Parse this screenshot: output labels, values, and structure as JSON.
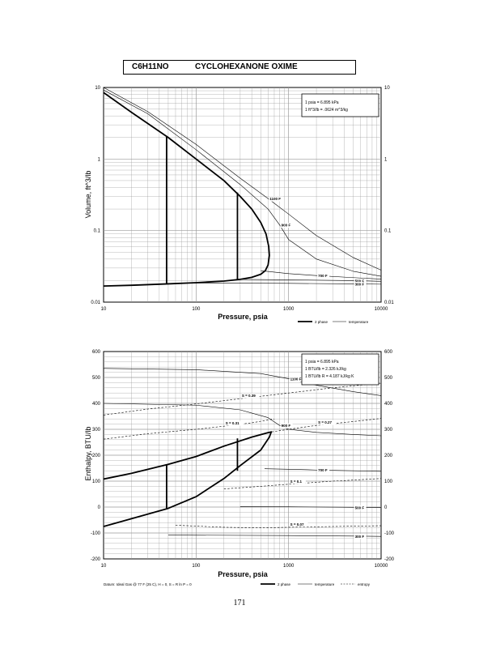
{
  "page": {
    "formula": "C6H11NO",
    "compound": "CYCLOHEXANONE OXIME",
    "page_number": "171",
    "footer_datum": "Datum: Ideal Gas @ 77 F (25 C), H = 0, S = R ln P = 0"
  },
  "legend": {
    "two_phase": "2 phase",
    "temperature": "temperature",
    "entropy": "entropy"
  },
  "colors": {
    "ink": "#000000",
    "grid": "#9a9a9a",
    "paper": "#ffffff"
  },
  "chart_data": [
    {
      "type": "line",
      "ylabel": "Volume, ft^3/lb",
      "xlabel": "Pressure,  psia",
      "xscale": "log",
      "yscale": "log",
      "xlim": [
        10,
        10000
      ],
      "ylim": [
        0.01,
        10
      ],
      "x_ticks": [
        "10",
        "100",
        "1000",
        "10000"
      ],
      "y_ticks": [
        "0.01",
        "0.1",
        "1",
        "10"
      ],
      "y_ticks_right": [
        "0.01",
        "0.1",
        "1",
        "10"
      ],
      "grid": true,
      "notes": [
        "1 psia = 6.895 kPa",
        "1 ft^3/lb = .0624 m^3/kg"
      ],
      "series": [
        {
          "kind": "2 phase",
          "points": [
            [
              10,
              0.0168
            ],
            [
              20,
              0.0172
            ],
            [
              50,
              0.018
            ],
            [
              100,
              0.0187
            ],
            [
              200,
              0.0197
            ],
            [
              300,
              0.0208
            ],
            [
              400,
              0.0222
            ],
            [
              500,
              0.0245
            ],
            [
              560,
              0.0275
            ],
            [
              600,
              0.033
            ],
            [
              620,
              0.045
            ],
            [
              610,
              0.06
            ],
            [
              570,
              0.09
            ],
            [
              500,
              0.13
            ],
            [
              400,
              0.2
            ],
            [
              300,
              0.3
            ],
            [
              200,
              0.5
            ],
            [
              100,
              1.0
            ],
            [
              50,
              2.0
            ],
            [
              20,
              4.5
            ],
            [
              10,
              8.5
            ]
          ]
        },
        {
          "kind": "2 phase",
          "points": [
            [
              48,
              0.0179
            ],
            [
              48,
              2.1
            ]
          ]
        },
        {
          "kind": "2 phase",
          "points": [
            [
              280,
              0.021
            ],
            [
              280,
              0.34
            ]
          ]
        },
        {
          "kind": "temperature",
          "label": "1100 F",
          "points": [
            [
              10,
              10
            ],
            [
              30,
              4.6
            ],
            [
              100,
              1.6
            ],
            [
              300,
              0.54
            ],
            [
              600,
              0.28
            ],
            [
              1000,
              0.17
            ],
            [
              2000,
              0.085
            ],
            [
              5000,
              0.042
            ],
            [
              10000,
              0.028
            ]
          ]
        },
        {
          "kind": "temperature",
          "label": "900 F",
          "points": [
            [
              10,
              9.2
            ],
            [
              30,
              4.3
            ],
            [
              100,
              1.35
            ],
            [
              300,
              0.44
            ],
            [
              600,
              0.2
            ],
            [
              800,
              0.12
            ],
            [
              1000,
              0.075
            ],
            [
              2000,
              0.04
            ],
            [
              5000,
              0.027
            ],
            [
              10000,
              0.023
            ]
          ]
        },
        {
          "kind": "temperature",
          "label": "700 F",
          "points": [
            [
              500,
              0.0275
            ],
            [
              1000,
              0.025
            ],
            [
              2000,
              0.0235
            ],
            [
              5000,
              0.022
            ],
            [
              10000,
              0.021
            ]
          ]
        },
        {
          "kind": "temperature",
          "label": "500 F",
          "points": [
            [
              300,
              0.0208
            ],
            [
              1000,
              0.0205
            ],
            [
              5000,
              0.02
            ],
            [
              10000,
              0.0195
            ]
          ]
        },
        {
          "kind": "temperature",
          "label": "300 F",
          "points": [
            [
              80,
              0.0185
            ],
            [
              1000,
              0.0183
            ],
            [
              5000,
              0.018
            ],
            [
              10000,
              0.0178
            ]
          ]
        }
      ]
    },
    {
      "type": "line",
      "ylabel": "Enthalpy, BTU/lb",
      "xlabel": "Pressure,  psia",
      "xscale": "log",
      "xlim": [
        10,
        10000
      ],
      "ylim": [
        -200,
        600
      ],
      "x_ticks": [
        "10",
        "100",
        "1000",
        "10000"
      ],
      "y_ticks": [
        "-200",
        "-100",
        "0",
        "100",
        "200",
        "300",
        "400",
        "500",
        "600"
      ],
      "y_ticks_right": [
        "-200",
        "-100",
        "0",
        "100",
        "200",
        "300",
        "400",
        "500",
        "600"
      ],
      "grid": true,
      "notes": [
        "1 psia = 6.895 kPa",
        "1 BTU/lb = 2.326 kJ/kg",
        "1 BTU/lb R = 4.187 kJ/kg K"
      ],
      "series": [
        {
          "kind": "2 phase",
          "points": [
            [
              10,
              108
            ],
            [
              20,
              130
            ],
            [
              50,
              165
            ],
            [
              100,
              195
            ],
            [
              200,
              235
            ],
            [
              400,
              270
            ],
            [
              600,
              287
            ],
            [
              650,
              290
            ],
            [
              620,
              270
            ],
            [
              500,
              220
            ],
            [
              300,
              160
            ],
            [
              200,
              110
            ],
            [
              100,
              40
            ],
            [
              50,
              -5
            ],
            [
              20,
              -45
            ],
            [
              10,
              -75
            ]
          ]
        },
        {
          "kind": "2 phase",
          "points": [
            [
              48,
              -8
            ],
            [
              48,
              162
            ]
          ]
        },
        {
          "kind": "2 phase",
          "points": [
            [
              280,
              140
            ],
            [
              280,
              265
            ]
          ]
        },
        {
          "kind": "temperature",
          "label": "1100 F",
          "points": [
            [
              10,
              535
            ],
            [
              100,
              530
            ],
            [
              500,
              515
            ],
            [
              1000,
              495
            ],
            [
              2000,
              470
            ],
            [
              5000,
              445
            ],
            [
              10000,
              430
            ]
          ]
        },
        {
          "kind": "temperature",
          "label": "900 F",
          "points": [
            [
              10,
              400
            ],
            [
              100,
              393
            ],
            [
              300,
              375
            ],
            [
              600,
              345
            ],
            [
              800,
              315
            ],
            [
              1000,
              300
            ],
            [
              2000,
              288
            ],
            [
              5000,
              280
            ],
            [
              10000,
              275
            ]
          ]
        },
        {
          "kind": "temperature",
          "label": "700 F",
          "points": [
            [
              550,
              148
            ],
            [
              1000,
              146
            ],
            [
              2000,
              143
            ],
            [
              5000,
              140
            ],
            [
              10000,
              138
            ]
          ]
        },
        {
          "kind": "temperature",
          "label": "500 F",
          "points": [
            [
              300,
              2
            ],
            [
              1000,
              1
            ],
            [
              5000,
              -1
            ],
            [
              10000,
              -2
            ]
          ]
        },
        {
          "kind": "temperature",
          "label": "300 F",
          "points": [
            [
              50,
              -108
            ],
            [
              1000,
              -110
            ],
            [
              5000,
              -112
            ],
            [
              10000,
              -113
            ]
          ]
        },
        {
          "kind": "entropy",
          "label": "S = 0.39",
          "points": [
            [
              10,
              355
            ],
            [
              30,
              378
            ],
            [
              100,
              398
            ],
            [
              300,
              418
            ],
            [
              1000,
              440
            ],
            [
              3000,
              460
            ],
            [
              10000,
              478
            ]
          ]
        },
        {
          "kind": "entropy",
          "label": "S = 0.31",
          "points": [
            [
              10,
              262
            ],
            [
              30,
              283
            ],
            [
              100,
              300
            ],
            [
              200,
              312
            ],
            [
              400,
              325
            ],
            [
              700,
              340
            ]
          ]
        },
        {
          "kind": "entropy",
          "label": "S = 0.27",
          "points": [
            [
              600,
              288
            ],
            [
              1000,
              300
            ],
            [
              2000,
              315
            ],
            [
              5000,
              330
            ],
            [
              10000,
              342
            ]
          ]
        },
        {
          "kind": "entropy",
          "label": "S = 0.1",
          "points": [
            [
              200,
              70
            ],
            [
              500,
              80
            ],
            [
              1000,
              88
            ],
            [
              3000,
              100
            ],
            [
              10000,
              110
            ]
          ]
        },
        {
          "kind": "entropy",
          "label": "S = 0.07",
          "points": [
            [
              60,
              -70
            ],
            [
              200,
              -78
            ],
            [
              500,
              -80
            ],
            [
              1000,
              -78
            ],
            [
              3000,
              -75
            ],
            [
              10000,
              -72
            ]
          ]
        }
      ]
    }
  ]
}
